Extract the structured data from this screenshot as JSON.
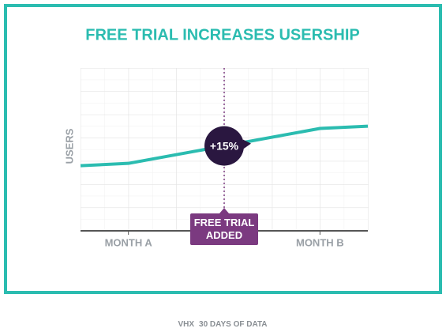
{
  "chart_data": {
    "type": "line",
    "title": "FREE TRIAL INCREASES USERSHIP",
    "y_label": "USERS",
    "x": [
      0,
      1,
      5,
      6
    ],
    "values": [
      2.8,
      2.9,
      4.4,
      4.5
    ],
    "color": "#2bbcb0",
    "xlim": [
      0,
      6
    ],
    "ylim": [
      0,
      7
    ],
    "xticks": [
      {
        "value": 1,
        "label": "MONTH A"
      },
      {
        "value": 5,
        "label": "MONTH B"
      }
    ],
    "event": {
      "x": 3,
      "label": "FREE TRIAL ADDED",
      "badge": "+15%",
      "color": "#7b3a80"
    },
    "footer": {
      "brand": "VHX",
      "text": "30 DAYS OF DATA"
    }
  }
}
